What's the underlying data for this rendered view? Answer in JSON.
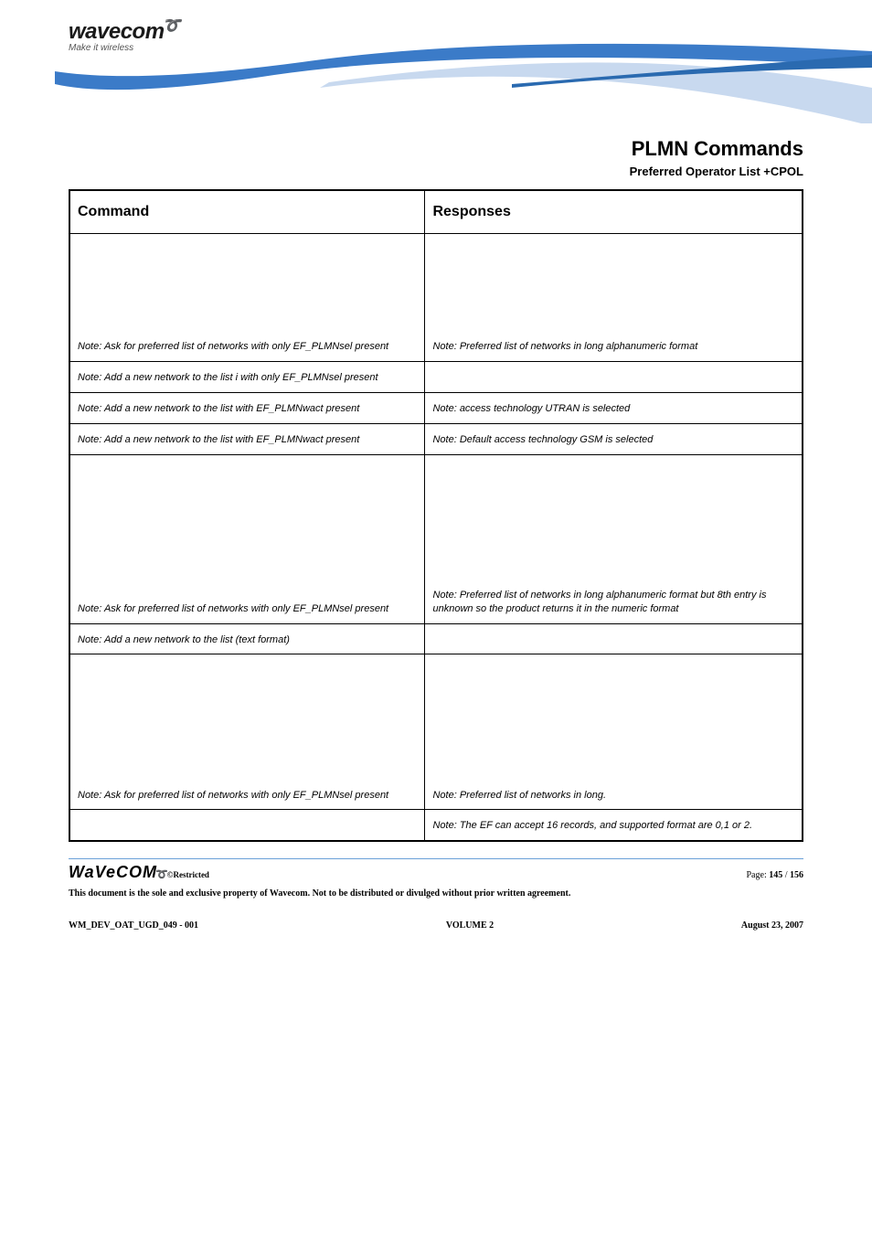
{
  "header": {
    "brand": "wavecom",
    "tagline": "Make it wireless"
  },
  "page": {
    "section_title": "PLMN Commands",
    "sub_title": "Preferred Operator List +CPOL"
  },
  "table": {
    "headers": {
      "col1": "Command",
      "col2": "Responses"
    },
    "rows": [
      {
        "cmd": "Note: Ask for preferred list of networks with only EF_PLMNsel present",
        "resp": "Note: Preferred list of networks in long alphanumeric format",
        "cls": "tall-1"
      },
      {
        "cmd": "Note: Add a new network to the list i with only EF_PLMNsel present",
        "resp": "",
        "cls": ""
      },
      {
        "cmd": "Note: Add a new network to the list with EF_PLMNwact present",
        "resp": "Note: access technology UTRAN is selected",
        "cls": ""
      },
      {
        "cmd": "Note: Add a new network to the list with EF_PLMNwact present",
        "resp": "Note: Default access technology GSM is selected",
        "cls": ""
      },
      {
        "cmd": "Note: Ask for preferred list of networks with only EF_PLMNsel present",
        "resp": "Note: Preferred list of networks in long alphanumeric format but 8th entry is unknown so the product returns it in the numeric format",
        "cls": "tall-2"
      },
      {
        "cmd": "Note: Add a new network to the list (text format)",
        "resp": "",
        "cls": ""
      },
      {
        "cmd": "Note: Ask for preferred list of networks with only EF_PLMNsel present",
        "resp": "Note: Preferred list of networks in long.",
        "cls": "tall-3"
      },
      {
        "cmd": "",
        "resp": "Note: The EF can accept 16 records, and supported format are 0,1 or 2.",
        "cls": ""
      }
    ]
  },
  "footer": {
    "brand": "WaVeCOM",
    "restricted": "©Restricted",
    "page_label": "Page: ",
    "page_current": "145",
    "page_sep": " / ",
    "page_total": "156",
    "legal": "This document is the sole and exclusive property of Wavecom. Not to be distributed or divulged without prior written agreement.",
    "docid": "WM_DEV_OAT_UGD_049 - 001",
    "volume": "VOLUME 2",
    "date": "August 23, 2007"
  }
}
